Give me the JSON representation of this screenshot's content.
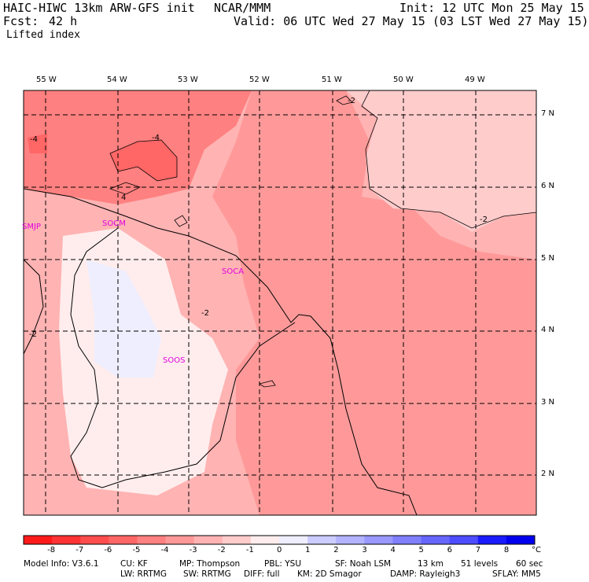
{
  "header": {
    "model": "HAIC-HIWC 13km ARW-GFS init",
    "org": "NCAR/MMM",
    "init": "Init: 12 UTC Mon 25 May 15",
    "fcst_label": "Fcst:",
    "fcst_value": "42 h",
    "valid": "Valid: 06 UTC Wed 27 May 15 (03 LST Wed 27 May 15)",
    "field": "Lifted index"
  },
  "axes": {
    "longitudes": [
      "55 W",
      "54 W",
      "53 W",
      "52 W",
      "51 W",
      "50 W",
      "49 W"
    ],
    "latitudes": [
      "7 N",
      "6 N",
      "5 N",
      "4 N",
      "3 N",
      "2 N"
    ]
  },
  "stations": [
    "SMJP",
    "SOCM",
    "SOCA",
    "SOOS"
  ],
  "contour_labels": [
    "-4",
    "-4",
    "4",
    "-2",
    "-2",
    "-2",
    "-2"
  ],
  "colorbar": {
    "ticks": [
      "-8",
      "-7",
      "-6",
      "-5",
      "-4",
      "-3",
      "-2",
      "-1",
      "0",
      "1",
      "2",
      "3",
      "4",
      "5",
      "6",
      "7",
      "8"
    ],
    "unit": "°C",
    "colors": [
      "#ff1a1a",
      "#ff3333",
      "#ff4d4d",
      "#ff6666",
      "#ff8080",
      "#ff9999",
      "#ffb3b3",
      "#ffcccc",
      "#ffeded",
      "#eeeefe",
      "#ccccff",
      "#b3b3ff",
      "#9999ff",
      "#8080ff",
      "#6666ff",
      "#4d4dff",
      "#1a1aff",
      "#0000ee"
    ]
  },
  "model_info": {
    "line1": [
      "Model Info: V3.6.1",
      "CU: KF",
      "MP: Thompson",
      "PBL: YSU",
      "SF: Noah LSM",
      "13 km",
      "51 levels",
      "60 sec"
    ],
    "line2": [
      "LW: RRTMG",
      "SW: RRTMG",
      "DIFF: full",
      "KM: 2D Smagor",
      "DAMP: Rayleigh3",
      "SFLAY: MM5"
    ]
  }
}
